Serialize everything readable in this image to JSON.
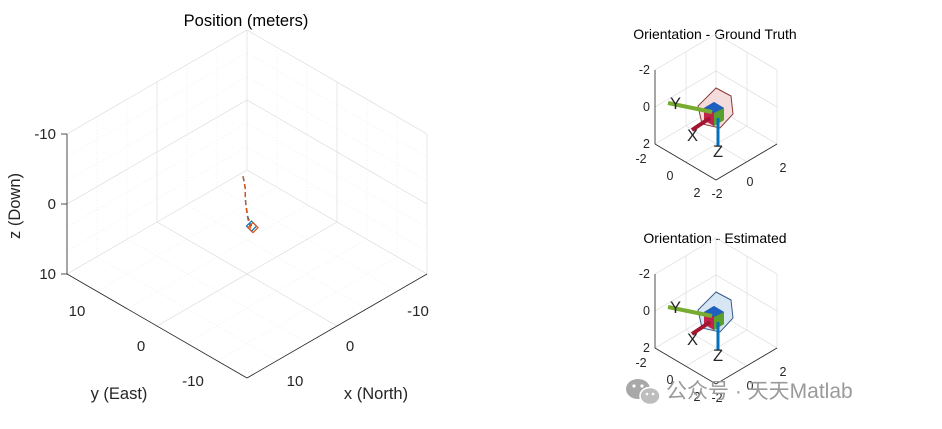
{
  "chart_data": [
    {
      "type": "line3d",
      "title": "Position (meters)",
      "xlabel": "x (North)",
      "ylabel": "y (East)",
      "zlabel": "z (Down)",
      "xticks": [
        "-10",
        "0",
        "10"
      ],
      "yticks": [
        "10",
        "0",
        "-10"
      ],
      "zticks": [
        "-10",
        "0",
        "10"
      ],
      "xlim": [
        -15,
        15
      ],
      "ylim": [
        -15,
        15
      ],
      "zlim": [
        -15,
        15
      ],
      "grid": true,
      "series": [
        {
          "color": "#0072BD",
          "style": "dashed",
          "x": [
            -3.0,
            -2.2,
            -1.2,
            -0.2,
            0.8,
            1.6,
            2.0
          ],
          "y": [
            -3.9,
            -2.9,
            -1.6,
            -0.6,
            0.6,
            1.8,
            3.0
          ],
          "z": [
            -1.4,
            -1.6,
            -1.3,
            -0.8,
            -0.2,
            0.6,
            1.3
          ]
        },
        {
          "color": "#D95319",
          "style": "dashed",
          "x": [
            -3.0,
            -2.2,
            -1.2,
            -0.2,
            0.8,
            1.6,
            2.2
          ],
          "y": [
            -3.9,
            -2.9,
            -1.6,
            -0.6,
            0.6,
            1.8,
            3.2
          ],
          "z": [
            -1.4,
            -1.5,
            -1.2,
            -0.6,
            0.0,
            0.9,
            1.9
          ]
        }
      ]
    },
    {
      "type": "orientation",
      "title": "Orientation - Ground Truth",
      "zticks": [
        "-2",
        "0",
        "2"
      ],
      "yticks": [
        "-2",
        "0",
        "2"
      ],
      "xticks": [
        "2",
        "0",
        "-2"
      ],
      "axis_labels": {
        "x": "X",
        "y": "Y",
        "z": "Z"
      },
      "shell_color": "#f5dcdc"
    },
    {
      "type": "orientation",
      "title": "Orientation - Estimated",
      "zticks": [
        "-2",
        "0",
        "2"
      ],
      "yticks": [
        "-2",
        "0",
        "2"
      ],
      "xticks": [
        "2",
        "0",
        "-2"
      ],
      "axis_labels": {
        "x": "X",
        "y": "Y",
        "z": "Z"
      },
      "shell_color": "#d7e6f5"
    }
  ],
  "watermark": "公众号 · 天天Matlab"
}
